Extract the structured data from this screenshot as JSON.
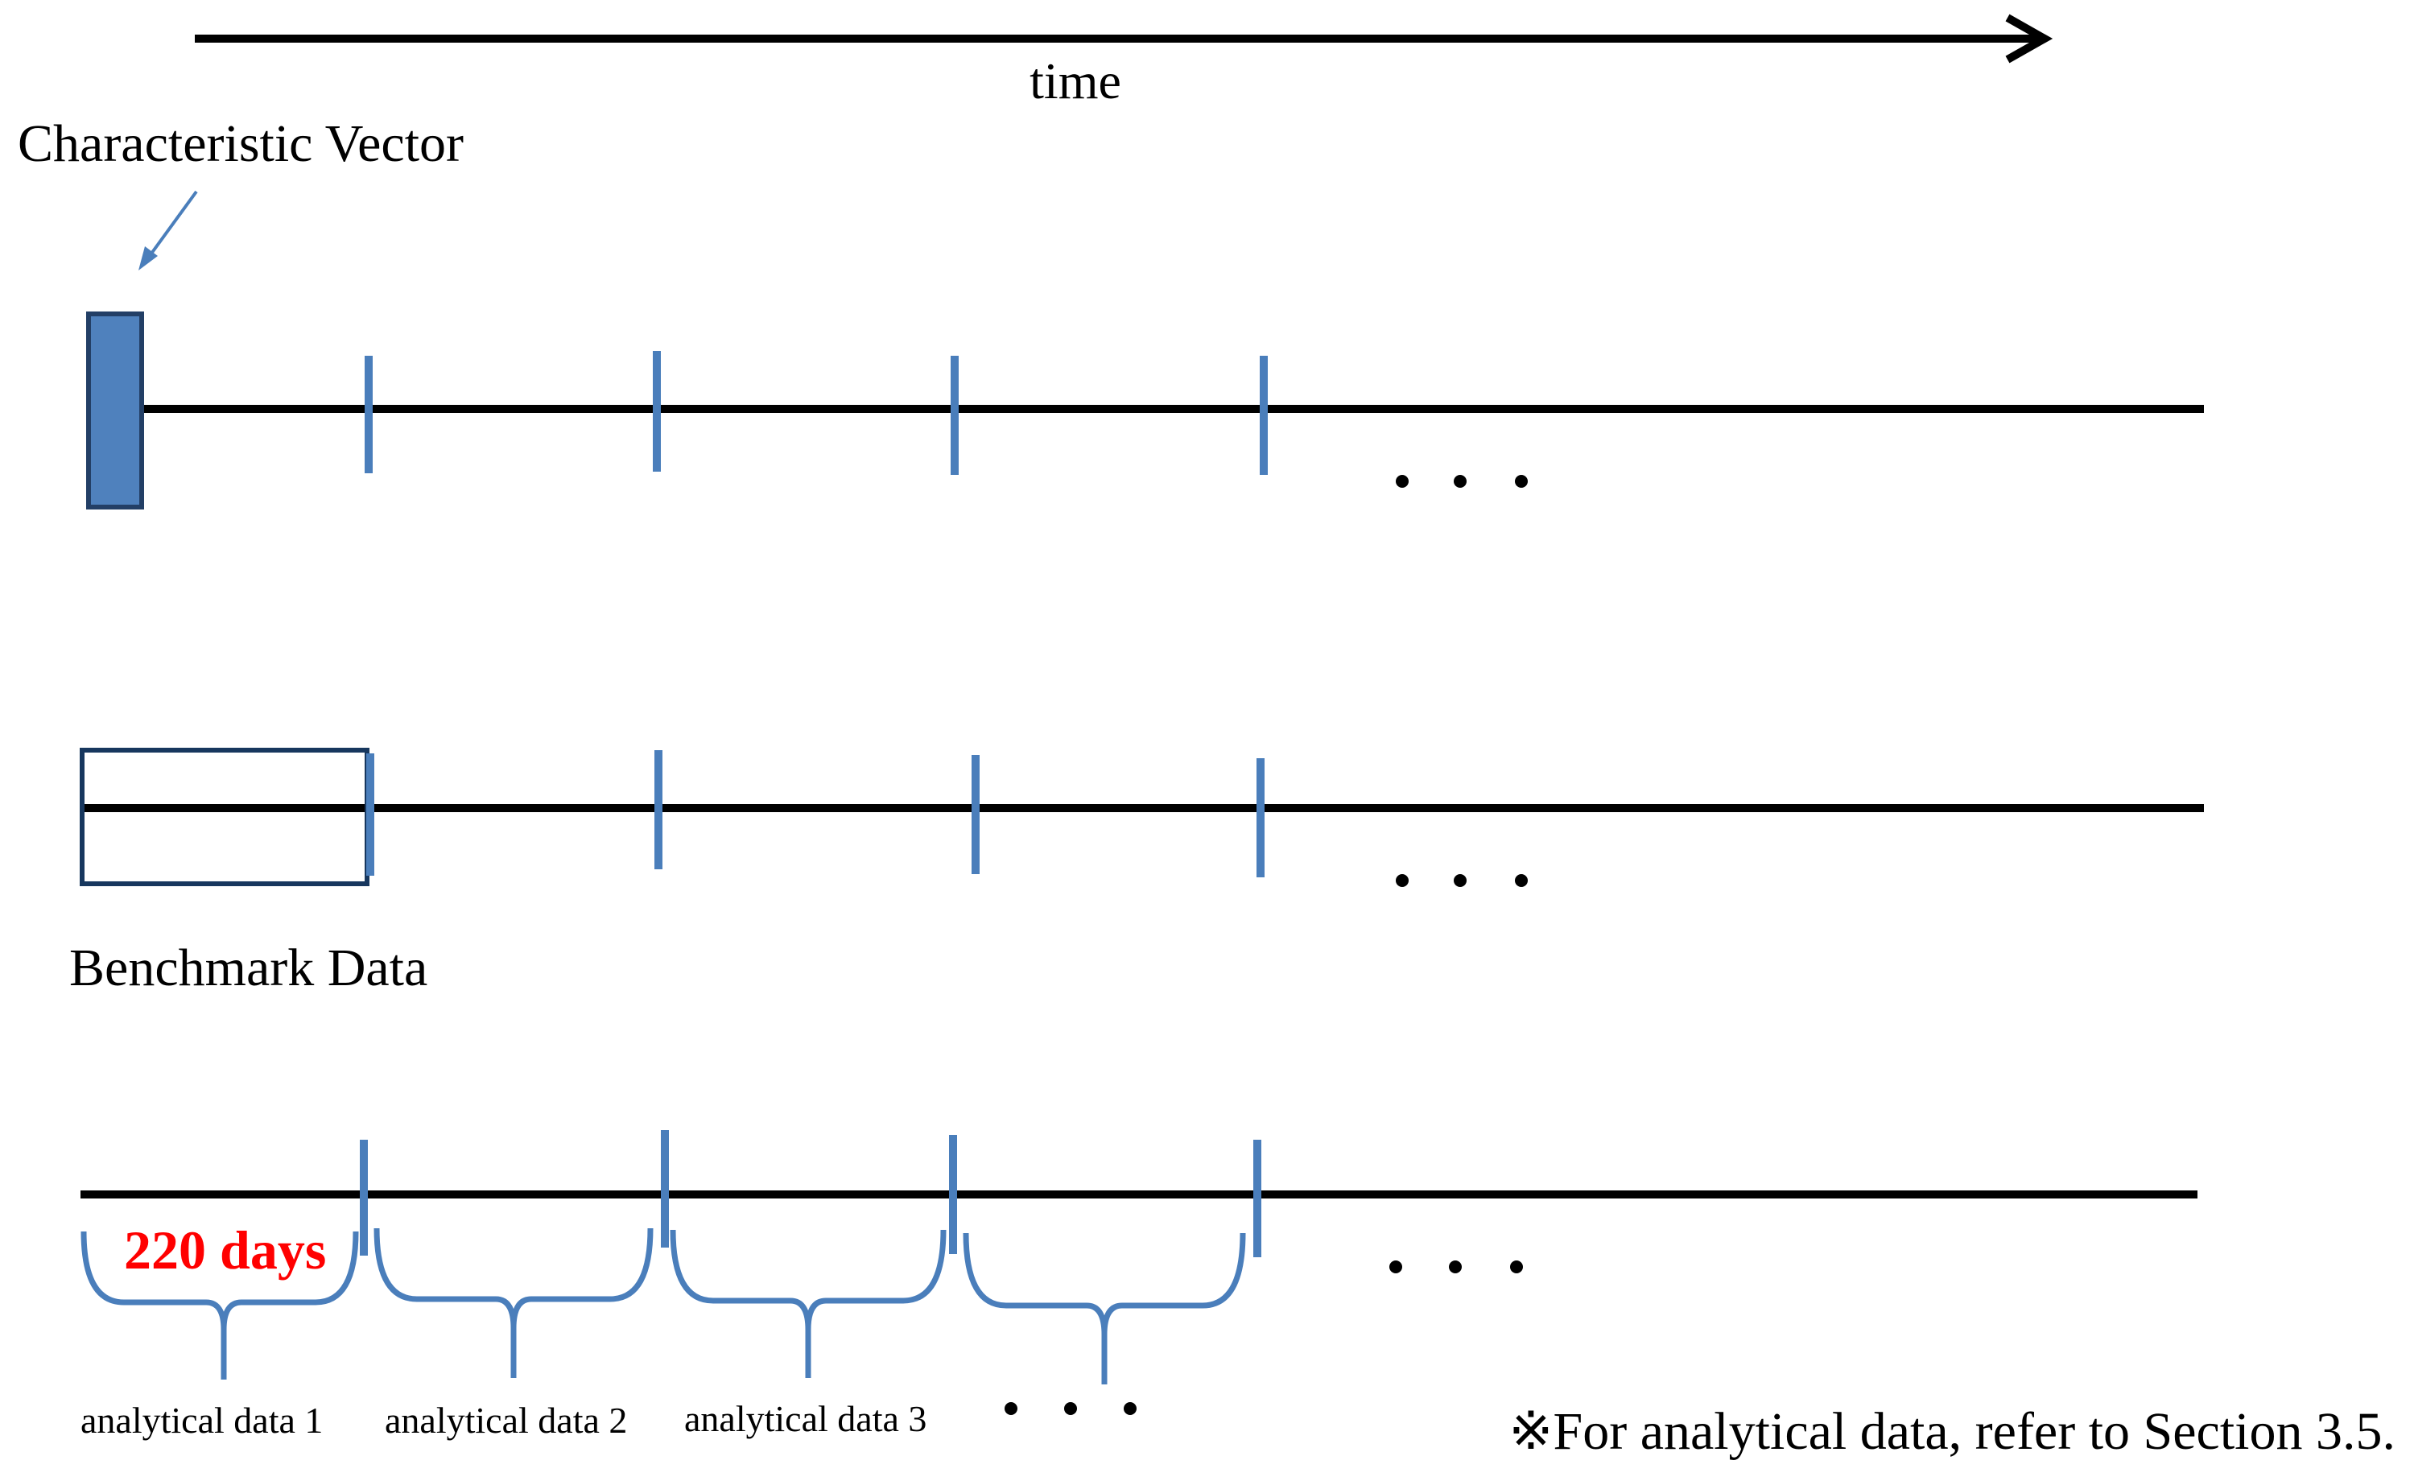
{
  "time_axis": {
    "label": "time"
  },
  "characteristic_vector": {
    "label": "Characteristic Vector"
  },
  "benchmark": {
    "label": "Benchmark Data"
  },
  "window": {
    "length_label": "220 days"
  },
  "analytical_labels": [
    "analytical data 1",
    "analytical data 2",
    "analytical data 3"
  ],
  "ellipsis": "・・・",
  "note": "※For analytical data, refer to Section 3.5.",
  "colors": {
    "accent_blue": "#4a7ebb",
    "vector_fill": "#4f81bd",
    "vector_stroke": "#233f66",
    "box_stroke": "#17375e",
    "highlight_red": "#ff0000",
    "line_black": "#000000"
  }
}
